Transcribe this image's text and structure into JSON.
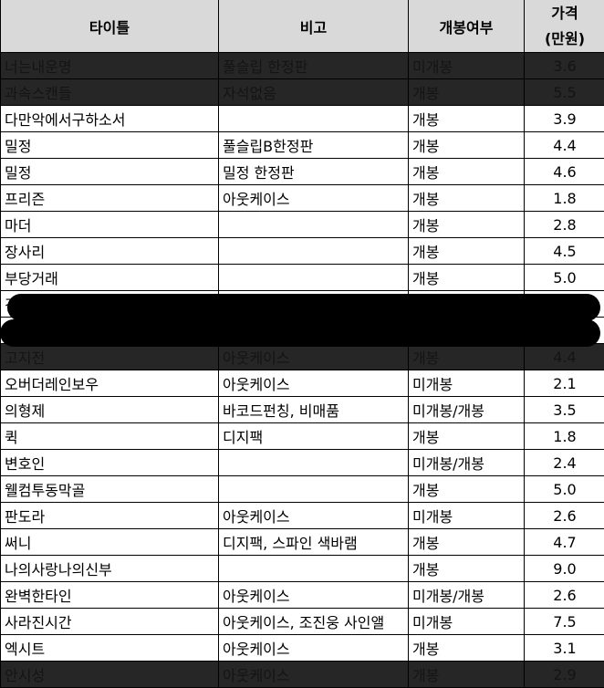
{
  "headers": {
    "title": "타이틀",
    "note": "비고",
    "opened": "개봉여부",
    "price_line1": "가격",
    "price_line2": "(만원)"
  },
  "rows": [
    {
      "title": "너는내운명",
      "note": "풀슬립 한정판",
      "opened": "미개봉",
      "price": "3.6",
      "dark": true
    },
    {
      "title": "과속스캔들",
      "note": "자석없음",
      "opened": "개봉",
      "price": "5.5",
      "dark": true
    },
    {
      "title": "다만악에서구하소서",
      "note": "",
      "opened": "개봉",
      "price": "3.9"
    },
    {
      "title": "밀정",
      "note": "풀슬립B한정판",
      "opened": "개봉",
      "price": "4.4"
    },
    {
      "title": "밀정",
      "note": "밀정 한정판",
      "opened": "개봉",
      "price": "4.6"
    },
    {
      "title": "프리즌",
      "note": "아웃케이스",
      "opened": "개봉",
      "price": "1.8"
    },
    {
      "title": "마더",
      "note": "",
      "opened": "개봉",
      "price": "2.8"
    },
    {
      "title": "장사리",
      "note": "",
      "opened": "개봉",
      "price": "4.5"
    },
    {
      "title": "부당거래",
      "note": "",
      "opened": "개봉",
      "price": "5.0"
    },
    {
      "title": "검",
      "note": "",
      "opened": "",
      "price": "",
      "redacted": true
    },
    {
      "title": "",
      "note": "",
      "opened": "",
      "price": "",
      "redacted": true
    },
    {
      "title": "고지전",
      "note": "아웃케이스",
      "opened": "개봉",
      "price": "4.4",
      "dark": true
    },
    {
      "title": "오버더레인보우",
      "note": "아웃케이스",
      "opened": "미개봉",
      "price": "2.1"
    },
    {
      "title": "의형제",
      "note": "바코드펀칭, 비매품",
      "opened": "미개봉/개봉",
      "price": "3.5"
    },
    {
      "title": "퀵",
      "note": "디지팩",
      "opened": "개봉",
      "price": "1.8"
    },
    {
      "title": "변호인",
      "note": "",
      "opened": "미개봉/개봉",
      "price": "2.4"
    },
    {
      "title": "웰컴투동막골",
      "note": "",
      "opened": "개봉",
      "price": "5.0"
    },
    {
      "title": "판도라",
      "note": "아웃케이스",
      "opened": "미개봉",
      "price": "2.6"
    },
    {
      "title": "써니",
      "note": "디지팩, 스파인 색바램",
      "opened": "개봉",
      "price": "4.7"
    },
    {
      "title": "나의사랑나의신부",
      "note": "",
      "opened": "개봉",
      "price": "9.0"
    },
    {
      "title": "완벽한타인",
      "note": "아웃케이스",
      "opened": "미개봉/개봉",
      "price": "2.6"
    },
    {
      "title": "사라진시간",
      "note": "아웃케이스, 조진웅 사인앨",
      "opened": "미개봉",
      "price": "7.5"
    },
    {
      "title": "엑시트",
      "note": "아웃케이스",
      "opened": "개봉",
      "price": "3.1"
    },
    {
      "title": "안시성",
      "note": "아웃케이스",
      "opened": "개봉",
      "price": "2.9",
      "dark": true
    }
  ]
}
